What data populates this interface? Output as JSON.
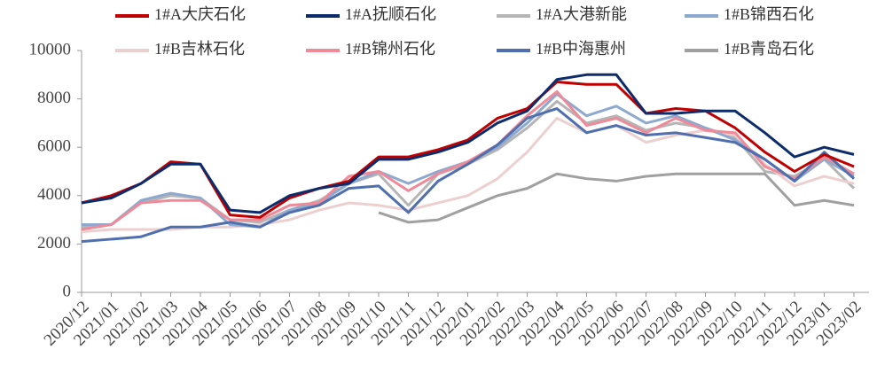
{
  "chart_data": {
    "type": "line",
    "categories": [
      "2020/12",
      "2021/01",
      "2021/02",
      "2021/03",
      "2021/04",
      "2021/05",
      "2021/06",
      "2021/07",
      "2021/08",
      "2021/09",
      "2021/10",
      "2021/11",
      "2021/12",
      "2022/01",
      "2022/02",
      "2022/03",
      "2022/04",
      "2022/05",
      "2022/06",
      "2022/07",
      "2022/08",
      "2022/09",
      "2022/10",
      "2022/11",
      "2022/12",
      "2023/01",
      "2023/02"
    ],
    "series": [
      {
        "name": "1#A大庆石化",
        "color": "#c00000",
        "values": [
          3700,
          4000,
          4500,
          5400,
          5300,
          3200,
          3100,
          3900,
          4300,
          4600,
          5600,
          5600,
          5900,
          6300,
          7200,
          7600,
          8700,
          8600,
          8600,
          7400,
          7600,
          7500,
          6800,
          5800,
          5000,
          5700,
          5200
        ]
      },
      {
        "name": "1#A抚顺石化",
        "color": "#0d2c6c",
        "values": [
          3700,
          3900,
          4500,
          5300,
          5300,
          3400,
          3300,
          4000,
          4300,
          4500,
          5500,
          5500,
          5800,
          6200,
          7000,
          7500,
          8800,
          9000,
          9000,
          7400,
          7400,
          7500,
          7500,
          6600,
          5600,
          6000,
          5700
        ]
      },
      {
        "name": "1#A大港新能",
        "color": "#b5b5b5",
        "values": [
          2700,
          2800,
          3700,
          4000,
          3900,
          3000,
          2900,
          3400,
          3800,
          4500,
          4900,
          3600,
          4900,
          5300,
          5900,
          6800,
          7900,
          7000,
          7300,
          6700,
          7000,
          6800,
          6400,
          5000,
          4800,
          5500,
          4300
        ]
      },
      {
        "name": "1#B锦西石化",
        "color": "#8ea9cf",
        "values": [
          2800,
          2800,
          3800,
          4100,
          3900,
          2800,
          2700,
          3400,
          3700,
          4500,
          5000,
          4500,
          5000,
          5400,
          6000,
          7000,
          8200,
          7300,
          7700,
          7000,
          7300,
          6800,
          6300,
          5500,
          4600,
          5500,
          4800
        ]
      },
      {
        "name": "1#B吉林石化",
        "color": "#ecd0d0",
        "values": [
          2500,
          2600,
          2600,
          2600,
          2700,
          2700,
          2800,
          3000,
          3400,
          3700,
          3600,
          3400,
          3700,
          4000,
          4700,
          5800,
          7200,
          6600,
          6900,
          6200,
          6500,
          6700,
          6500,
          5300,
          4400,
          4800,
          4500
        ]
      },
      {
        "name": "1#B锦州石化",
        "color": "#f08a98",
        "values": [
          2600,
          2800,
          3700,
          3800,
          3800,
          3000,
          3000,
          3600,
          3700,
          4800,
          5000,
          4200,
          4900,
          5400,
          6100,
          7300,
          8300,
          6900,
          7200,
          6600,
          7200,
          6700,
          6600,
          5200,
          4700,
          5600,
          4900
        ]
      },
      {
        "name": "1#B中海惠州",
        "color": "#4f6fae",
        "values": [
          2100,
          2200,
          2300,
          2700,
          2700,
          2900,
          2700,
          3300,
          3600,
          4300,
          4400,
          3300,
          4600,
          5300,
          6100,
          7200,
          7600,
          6600,
          6900,
          6500,
          6600,
          6400,
          6200,
          5500,
          4600,
          5800,
          4700
        ]
      },
      {
        "name": "1#B青岛石化",
        "color": "#a0a0a0",
        "values": [
          1800,
          null,
          null,
          null,
          null,
          null,
          null,
          null,
          null,
          null,
          3300,
          2900,
          3000,
          3500,
          4000,
          4300,
          4900,
          4700,
          4600,
          4800,
          4900,
          4900,
          4900,
          4900,
          3600,
          3800,
          3600
        ]
      }
    ],
    "ylim": [
      0,
      10000
    ],
    "yticks": [
      0,
      2000,
      4000,
      6000,
      8000,
      10000
    ]
  }
}
